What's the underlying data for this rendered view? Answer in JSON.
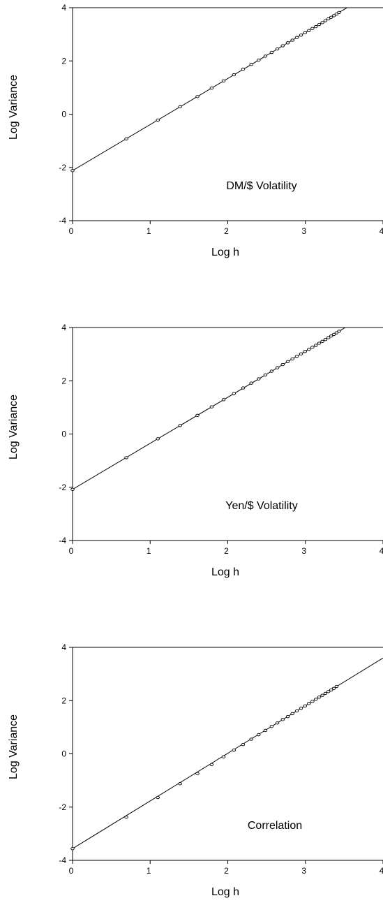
{
  "chart_data": [
    {
      "type": "scatter",
      "annotation": "DM/$ Volatility",
      "xlabel": "Log h",
      "ylabel": "Log Variance",
      "xlim": [
        0,
        4
      ],
      "ylim": [
        -4,
        4
      ],
      "xticks": [
        "0",
        "1",
        "2",
        "3",
        "4"
      ],
      "yticks": [
        "4",
        "2",
        "0",
        "-2",
        "-4"
      ],
      "grid": false,
      "fit_line": {
        "intercept": -2.12,
        "slope": 1.73
      },
      "points": {
        "x": [
          0,
          0.693,
          1.099,
          1.386,
          1.609,
          1.792,
          1.946,
          2.079,
          2.197,
          2.303,
          2.398,
          2.485,
          2.565,
          2.639,
          2.708,
          2.773,
          2.833,
          2.89,
          2.944,
          2.996,
          3.045,
          3.091,
          3.135,
          3.178,
          3.219,
          3.258,
          3.296,
          3.332,
          3.367,
          3.401,
          3.434
        ],
        "y": [
          -2.12,
          -0.93,
          -0.22,
          0.28,
          0.66,
          0.98,
          1.25,
          1.48,
          1.69,
          1.87,
          2.03,
          2.18,
          2.32,
          2.45,
          2.57,
          2.68,
          2.78,
          2.88,
          2.97,
          3.06,
          3.14,
          3.22,
          3.29,
          3.37,
          3.44,
          3.51,
          3.58,
          3.64,
          3.7,
          3.76,
          3.82
        ]
      }
    },
    {
      "type": "scatter",
      "annotation": "Yen/$ Volatility",
      "xlabel": "Log h",
      "ylabel": "Log Variance",
      "xlim": [
        0,
        4
      ],
      "ylim": [
        -4,
        4
      ],
      "xticks": [
        "0",
        "1",
        "2",
        "3",
        "4"
      ],
      "yticks": [
        "4",
        "2",
        "0",
        "-2",
        "-4"
      ],
      "grid": false,
      "fit_line": {
        "intercept": -2.08,
        "slope": 1.73
      },
      "points": {
        "x": [
          0,
          0.693,
          1.099,
          1.386,
          1.609,
          1.792,
          1.946,
          2.079,
          2.197,
          2.303,
          2.398,
          2.485,
          2.565,
          2.639,
          2.708,
          2.773,
          2.833,
          2.89,
          2.944,
          2.996,
          3.045,
          3.091,
          3.135,
          3.178,
          3.219,
          3.258,
          3.296,
          3.332,
          3.367,
          3.401,
          3.434
        ],
        "y": [
          -2.08,
          -0.89,
          -0.18,
          0.32,
          0.7,
          1.02,
          1.29,
          1.52,
          1.73,
          1.91,
          2.07,
          2.22,
          2.36,
          2.49,
          2.61,
          2.72,
          2.82,
          2.92,
          3.01,
          3.1,
          3.18,
          3.26,
          3.33,
          3.41,
          3.48,
          3.55,
          3.62,
          3.68,
          3.74,
          3.8,
          3.86
        ]
      }
    },
    {
      "type": "scatter",
      "annotation": "Correlation",
      "xlabel": "Log h",
      "ylabel": "Log Variance",
      "xlim": [
        0,
        4
      ],
      "ylim": [
        -4,
        4
      ],
      "xticks": [
        "0",
        "1",
        "2",
        "3",
        "4"
      ],
      "yticks": [
        "4",
        "2",
        "0",
        "-2",
        "-4"
      ],
      "grid": false,
      "fit_line": {
        "intercept": -3.56,
        "slope": 1.79
      },
      "points": {
        "x": [
          0,
          0.693,
          1.099,
          1.386,
          1.609,
          1.792,
          1.946,
          2.079,
          2.197,
          2.303,
          2.398,
          2.485,
          2.565,
          2.639,
          2.708,
          2.773,
          2.833,
          2.89,
          2.944,
          2.996,
          3.045,
          3.091,
          3.135,
          3.178,
          3.219,
          3.258,
          3.296,
          3.332,
          3.367,
          3.401
        ],
        "y": [
          -3.56,
          -2.38,
          -1.64,
          -1.12,
          -0.74,
          -0.4,
          -0.11,
          0.14,
          0.35,
          0.55,
          0.72,
          0.88,
          1.03,
          1.16,
          1.29,
          1.4,
          1.51,
          1.61,
          1.71,
          1.8,
          1.89,
          1.97,
          2.05,
          2.13,
          2.2,
          2.27,
          2.34,
          2.4,
          2.46,
          2.53
        ]
      }
    }
  ]
}
